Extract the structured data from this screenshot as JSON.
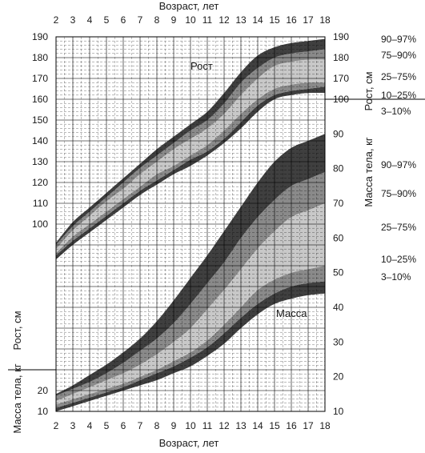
{
  "chart_data": {
    "type": "area",
    "title": "",
    "top_axis_title": "Возраст, лет",
    "bottom_axis_title": "Возраст, лет",
    "left_upper_axis_title": "Рост, см",
    "left_lower_axis_title": "Масса тела, кг",
    "right_upper_axis_title": "Рост, см",
    "right_lower_axis_title": "Масса тела, кг",
    "x_range": [
      2,
      18
    ],
    "x_ticks": [
      2,
      3,
      4,
      5,
      6,
      7,
      8,
      9,
      10,
      11,
      12,
      13,
      14,
      15,
      16,
      17,
      18
    ],
    "left_y_range": [
      10,
      190
    ],
    "left_upper_ticks": [
      100,
      110,
      120,
      130,
      140,
      150,
      160,
      170,
      180,
      190
    ],
    "left_lower_ticks": [
      10,
      20
    ],
    "right_upper_ticks": [
      170,
      180,
      190
    ],
    "right_lower_ticks": [
      10,
      20,
      30,
      40,
      50,
      60,
      70,
      80,
      90,
      100
    ],
    "weight_axis_range": [
      10,
      100
    ],
    "height_series_label": "Рост",
    "weight_series_label": "Масса",
    "height_percentile_labels": [
      "90–97%",
      "75–90%",
      "25–75%",
      "10–25%",
      "3–10%"
    ],
    "weight_percentile_labels": [
      "90–97%",
      "75–90%",
      "25–75%",
      "10–25%",
      "3–10%"
    ],
    "x": [
      2,
      3,
      4,
      5,
      6,
      7,
      8,
      9,
      10,
      11,
      12,
      13,
      14,
      15,
      16,
      17,
      18
    ],
    "height_series": [
      {
        "name": "3%",
        "values": [
          83,
          90,
          96,
          102,
          108,
          114,
          119,
          124,
          128,
          133,
          139,
          146,
          154,
          160,
          162,
          163,
          163
        ]
      },
      {
        "name": "10%",
        "values": [
          85,
          92,
          98,
          104,
          110,
          116,
          121,
          126,
          131,
          135,
          141,
          149,
          157,
          162,
          164,
          165,
          166
        ]
      },
      {
        "name": "25%",
        "values": [
          86,
          94,
          100,
          106,
          112,
          118,
          124,
          128,
          133,
          138,
          145,
          153,
          160,
          165,
          167,
          168,
          168
        ]
      },
      {
        "name": "75%",
        "values": [
          88,
          97,
          104,
          111,
          117,
          124,
          130,
          136,
          141,
          146,
          153,
          162,
          170,
          176,
          178,
          179,
          179
        ]
      },
      {
        "name": "90%",
        "values": [
          90,
          99,
          106,
          113,
          120,
          127,
          133,
          139,
          145,
          150,
          158,
          168,
          175,
          180,
          182,
          183,
          184
        ]
      },
      {
        "name": "97%",
        "values": [
          91,
          101,
          108,
          115,
          122,
          129,
          136,
          142,
          148,
          154,
          163,
          173,
          181,
          185,
          187,
          188,
          189
        ]
      }
    ],
    "weight_series": [
      {
        "name": "3%",
        "values": [
          10,
          11.5,
          13,
          14.5,
          16,
          17.5,
          19,
          21,
          23,
          26,
          29.5,
          34,
          38,
          41,
          42.5,
          43.5,
          44
        ]
      },
      {
        "name": "10%",
        "values": [
          11,
          12.5,
          14,
          15.5,
          17,
          19,
          21,
          23,
          25.5,
          28.5,
          32.5,
          37,
          41,
          44,
          46,
          47,
          47.5
        ]
      },
      {
        "name": "25%",
        "values": [
          12,
          13.5,
          15,
          16.5,
          18,
          20,
          22,
          24.5,
          27,
          30.5,
          35,
          40,
          45,
          48,
          50,
          51,
          52
        ]
      },
      {
        "name": "75%",
        "values": [
          13,
          15,
          17,
          19,
          21,
          23.5,
          26.5,
          30,
          34,
          39.5,
          45,
          51,
          57,
          62,
          66,
          68,
          70
        ]
      },
      {
        "name": "90%",
        "values": [
          14.5,
          16.5,
          18.5,
          21,
          24,
          27.5,
          31,
          35.5,
          41,
          47,
          53,
          60,
          66,
          71,
          75,
          77,
          79
        ]
      },
      {
        "name": "97%",
        "values": [
          15,
          17.5,
          20.5,
          23.5,
          27,
          31,
          36,
          42,
          48.5,
          55,
          62,
          69,
          76,
          82,
          86,
          88,
          90
        ]
      }
    ],
    "band_colors": {
      "outer": "#3f3f3f",
      "mid": "#8a8a8a",
      "inner": "#c8c8c8"
    },
    "grid": true
  }
}
